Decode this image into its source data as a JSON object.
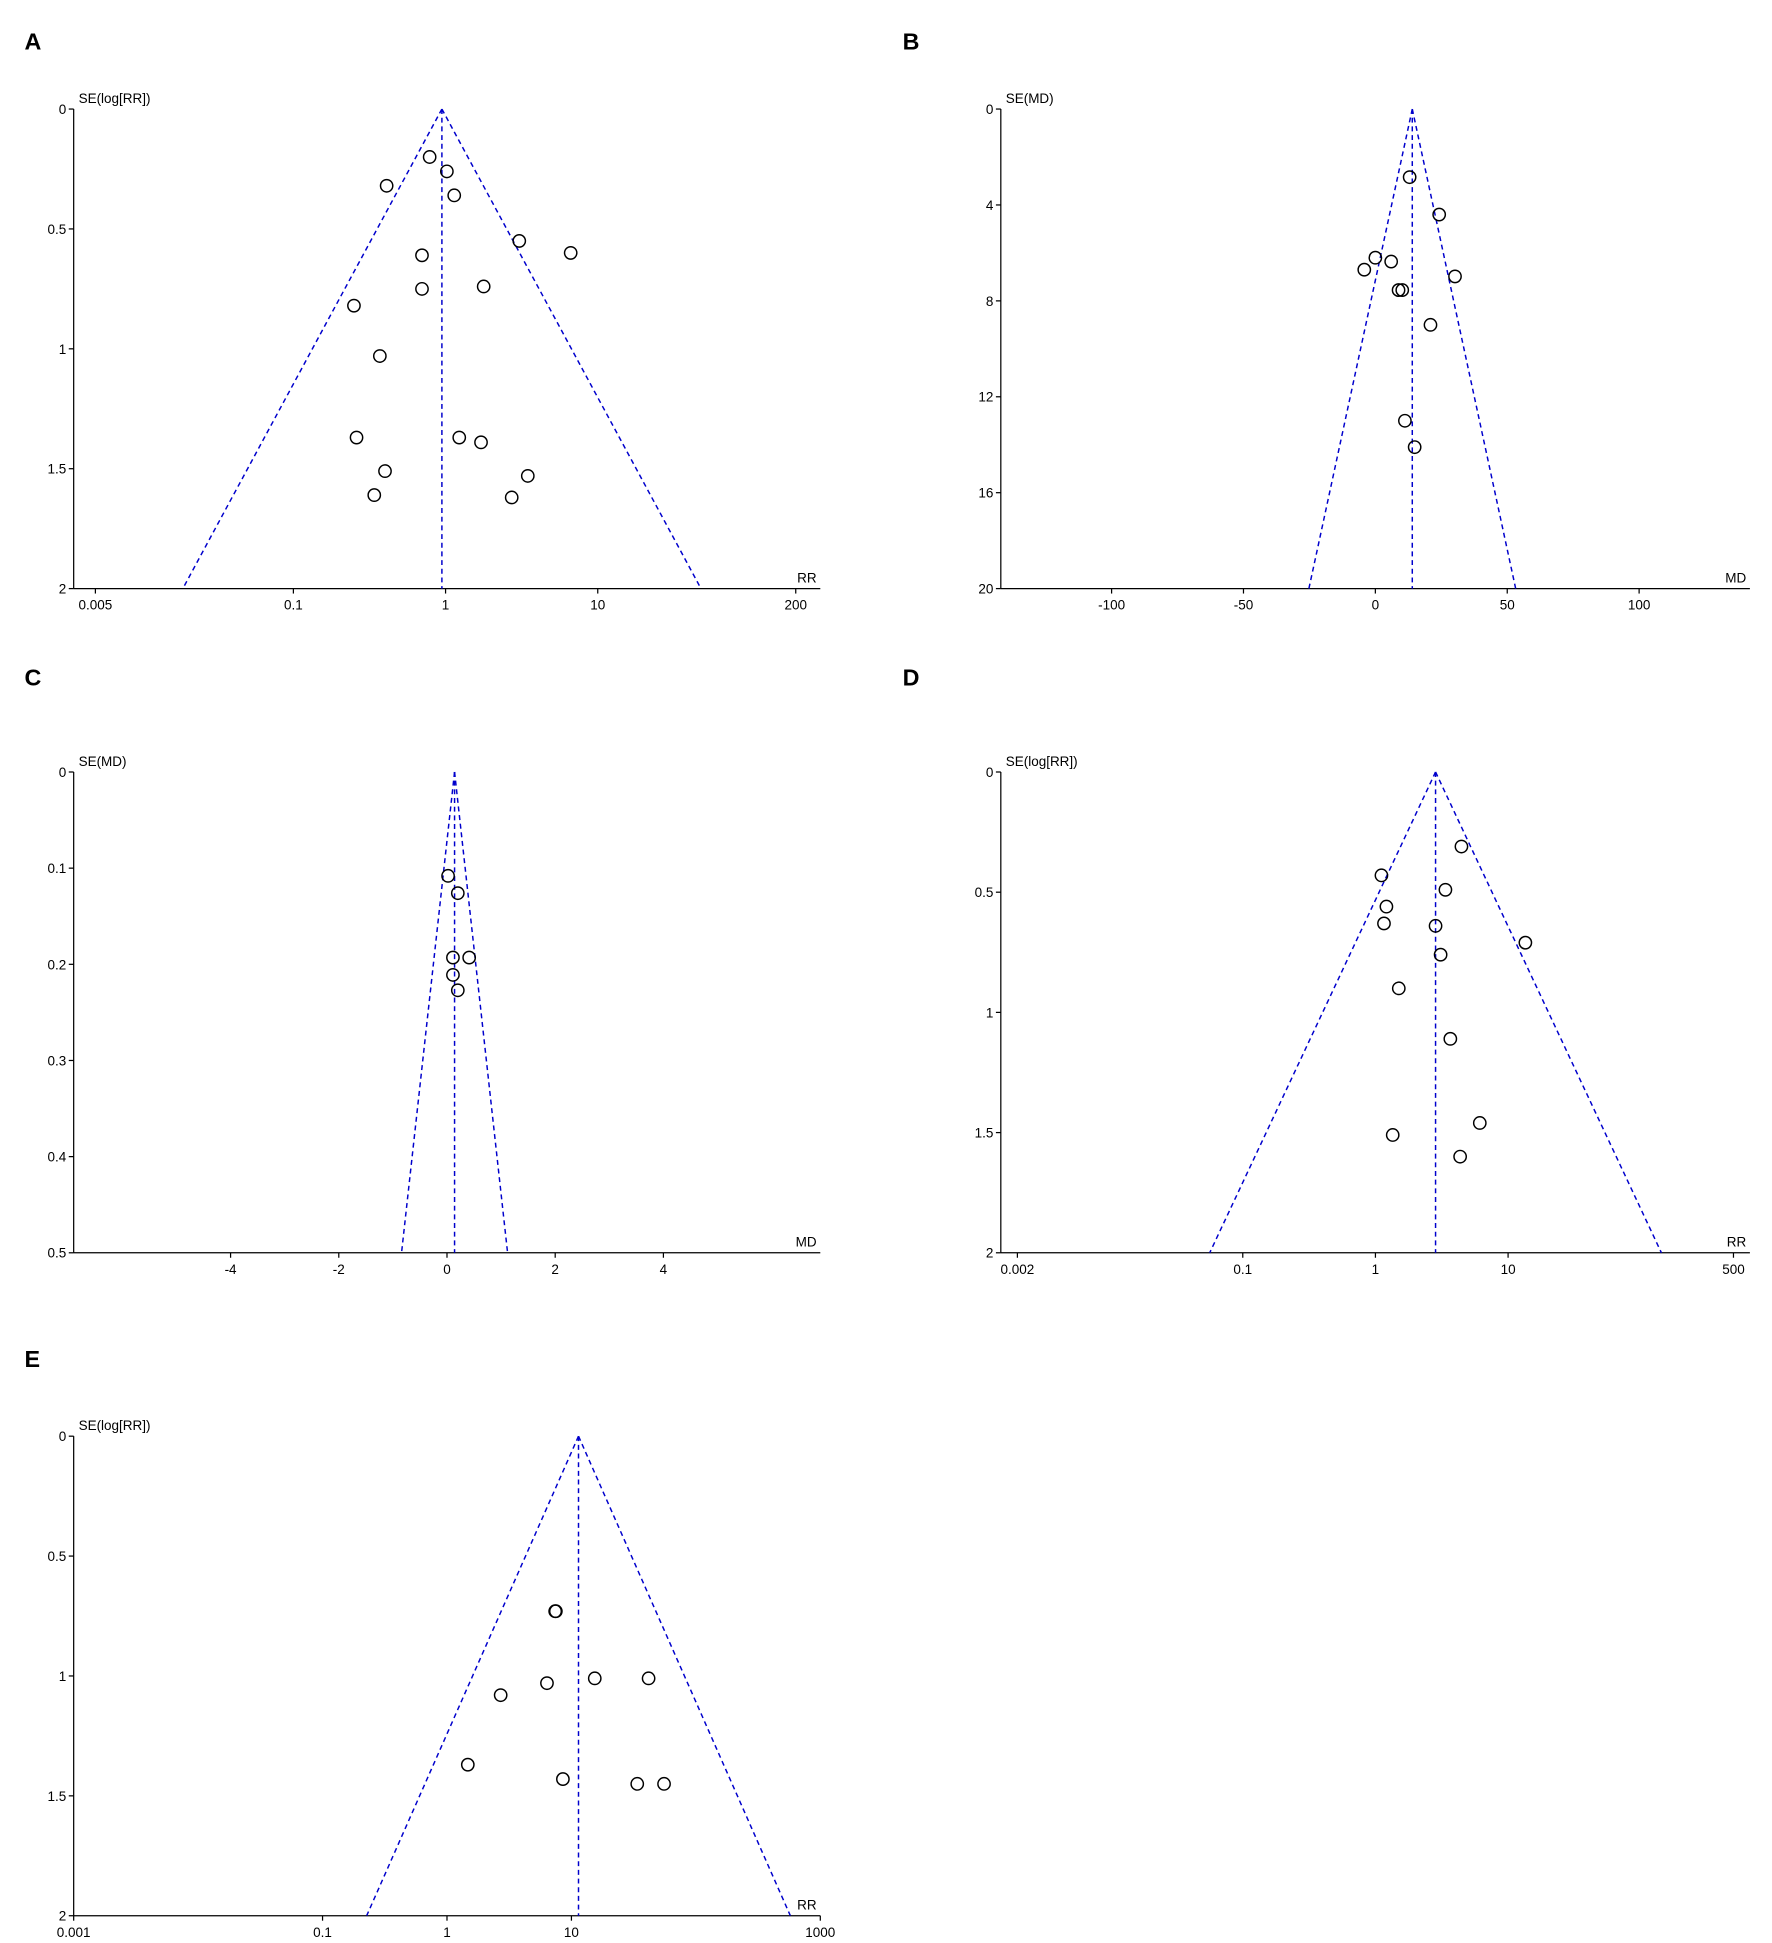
{
  "chart_data": [
    {
      "type": "funnel",
      "panel": "A",
      "y_label": "SE(log[RR])",
      "x_label": "RR",
      "xscale": "log",
      "xlim": [
        0.0036,
        290
      ],
      "ylim": [
        0,
        2
      ],
      "xticks": [
        0.005,
        0.1,
        1,
        10,
        200
      ],
      "yticks": [
        0,
        0.5,
        1,
        1.5,
        2
      ],
      "pooled": 0.946,
      "color": "#0000cc",
      "marker_color": "#000000",
      "x": [
        0.786,
        1.02,
        0.41,
        1.14,
        3.05,
        6.64,
        0.7,
        0.7,
        1.78,
        0.25,
        0.37,
        0.26,
        1.23,
        1.71,
        0.4,
        3.47,
        0.34,
        2.72
      ],
      "y": [
        0.2,
        0.26,
        0.32,
        0.36,
        0.55,
        0.6,
        0.61,
        0.75,
        0.74,
        0.82,
        1.03,
        1.37,
        1.37,
        1.39,
        1.51,
        1.53,
        1.61,
        1.62
      ]
    },
    {
      "type": "funnel",
      "panel": "B",
      "y_label": "SE(MD)",
      "x_label": "MD",
      "xscale": "linear",
      "xlim": [
        -142,
        142
      ],
      "ylim": [
        0,
        20
      ],
      "xticks": [
        -100,
        -50,
        0,
        50,
        100
      ],
      "yticks": [
        0,
        4,
        8,
        12,
        16,
        20
      ],
      "pooled": 14,
      "color": "#0000cc",
      "marker_color": "#000000",
      "x": [
        13,
        24.2,
        0,
        6,
        -4.2,
        30.2,
        8.8,
        10.2,
        20.9,
        11.2,
        14.9
      ],
      "y": [
        2.84,
        4.4,
        6.2,
        6.36,
        6.7,
        6.98,
        7.55,
        7.55,
        9.0,
        13.0,
        14.1
      ]
    },
    {
      "type": "funnel",
      "panel": "C",
      "y_label": "SE(MD)",
      "x_label": "MD",
      "xscale": "linear",
      "xlim": [
        -6.9,
        6.9
      ],
      "ylim": [
        0,
        0.5
      ],
      "xticks": [
        -4,
        -2,
        0,
        2,
        4
      ],
      "yticks": [
        0,
        0.1,
        0.2,
        0.3,
        0.4,
        0.5
      ],
      "pooled": 0.14,
      "color": "#0000cc",
      "marker_color": "#000000",
      "x": [
        0.02,
        0.2,
        0.11,
        0.41,
        0.11,
        0.2
      ],
      "y": [
        0.108,
        0.126,
        0.193,
        0.193,
        0.211,
        0.227
      ]
    },
    {
      "type": "funnel",
      "panel": "D",
      "y_label": "SE(log[RR])",
      "x_label": "RR",
      "xscale": "log",
      "xlim": [
        0.0015,
        665
      ],
      "ylim": [
        0,
        2
      ],
      "xticks": [
        0.002,
        0.1,
        1,
        10,
        500
      ],
      "yticks": [
        0,
        0.5,
        1,
        1.5,
        2
      ],
      "pooled": 2.84,
      "color": "#0000cc",
      "marker_color": "#000000",
      "x": [
        4.45,
        1.11,
        3.37,
        1.21,
        1.16,
        2.84,
        13.5,
        3.1,
        1.5,
        3.67,
        6.12,
        1.35,
        4.35
      ],
      "y": [
        0.31,
        0.43,
        0.49,
        0.56,
        0.63,
        0.64,
        0.71,
        0.76,
        0.9,
        1.11,
        1.46,
        1.51,
        1.6
      ]
    },
    {
      "type": "funnel",
      "panel": "E",
      "y_label": "SE(log[RR])",
      "x_label": "RR",
      "xscale": "log",
      "xlim": [
        0.001,
        1000
      ],
      "ylim": [
        0,
        2
      ],
      "xticks": [
        0.001,
        0.1,
        1,
        10,
        1000
      ],
      "yticks": [
        0,
        0.5,
        1,
        1.5,
        2
      ],
      "pooled": 11.4,
      "color": "#0000cc",
      "marker_color": "#000000",
      "x": [
        7.4,
        7.5,
        2.7,
        6.36,
        15.4,
        41.7,
        1.47,
        8.54,
        33.8,
        55.5
      ],
      "y": [
        0.73,
        0.73,
        1.08,
        1.03,
        1.01,
        1.01,
        1.37,
        1.43,
        1.45,
        1.45
      ]
    }
  ]
}
